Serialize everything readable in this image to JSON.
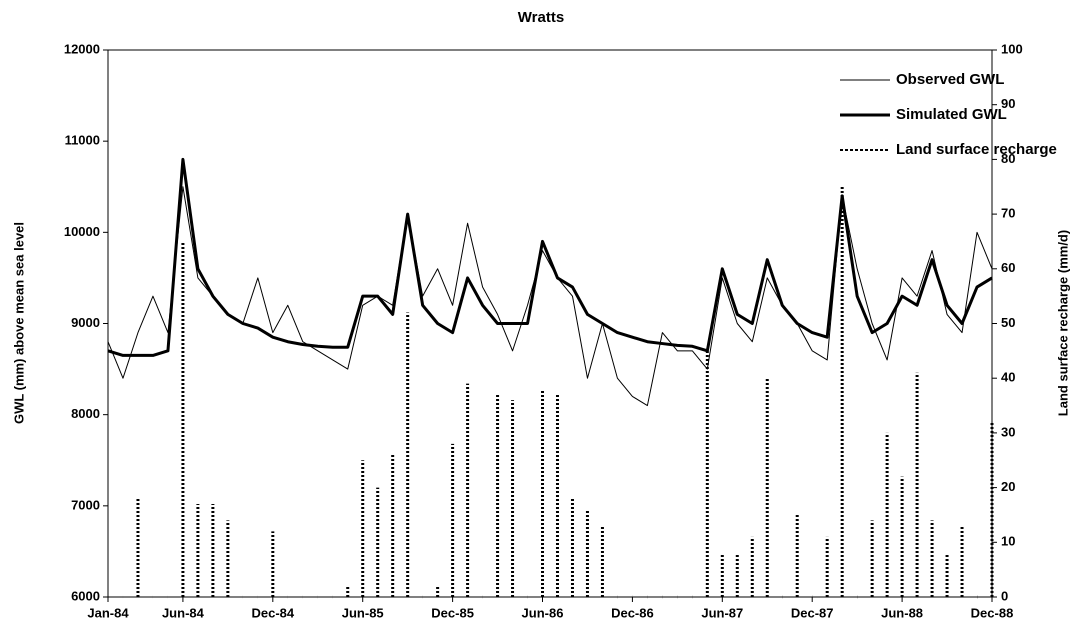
{
  "chart_data": {
    "type": "line",
    "title": "Wratts",
    "ylabel": "GWL (mm) above mean sea level",
    "y2label": "Land surface recharge (mm/d)",
    "categories": [
      "Jan-84",
      "Feb-84",
      "Mar-84",
      "Apr-84",
      "May-84",
      "Jun-84",
      "Jul-84",
      "Aug-84",
      "Sep-84",
      "Oct-84",
      "Nov-84",
      "Dec-84",
      "Jan-85",
      "Feb-85",
      "Mar-85",
      "Apr-85",
      "May-85",
      "Jun-85",
      "Jul-85",
      "Aug-85",
      "Sep-85",
      "Oct-85",
      "Nov-85",
      "Dec-85",
      "Jan-86",
      "Feb-86",
      "Mar-86",
      "Apr-86",
      "May-86",
      "Jun-86",
      "Jul-86",
      "Aug-86",
      "Sep-86",
      "Oct-86",
      "Nov-86",
      "Dec-86",
      "Jan-87",
      "Feb-87",
      "Mar-87",
      "Apr-87",
      "May-87",
      "Jun-87",
      "Jul-87",
      "Aug-87",
      "Sep-87",
      "Oct-87",
      "Nov-87",
      "Dec-87",
      "Jan-88",
      "Feb-88",
      "Mar-88",
      "Apr-88",
      "May-88",
      "Jun-88",
      "Jul-88",
      "Aug-88",
      "Sep-88",
      "Oct-88",
      "Nov-88",
      "Dec-88"
    ],
    "xticks": [
      "Jan-84",
      "Jun-84",
      "Dec-84",
      "Jun-85",
      "Dec-85",
      "Jun-86",
      "Dec-86",
      "Jun-87",
      "Dec-87",
      "Jun-88",
      "Dec-88"
    ],
    "ylim": [
      6000,
      12000
    ],
    "yticks": [
      6000,
      7000,
      8000,
      9000,
      10000,
      11000,
      12000
    ],
    "y2lim": [
      0,
      100
    ],
    "y2ticks": [
      0,
      10,
      20,
      30,
      40,
      50,
      60,
      70,
      80,
      90,
      100
    ],
    "legend": "upper right",
    "series": [
      {
        "name": "Observed GWL",
        "color": "#000000",
        "width": 1,
        "values": [
          8800,
          8400,
          8900,
          9300,
          8900,
          10500,
          9500,
          9300,
          9100,
          9000,
          9500,
          8900,
          9200,
          8800,
          8700,
          8600,
          8500,
          9200,
          9300,
          9200,
          10200,
          9300,
          9600,
          9200,
          10100,
          9400,
          9100,
          8700,
          9200,
          9800,
          9500,
          9300,
          8400,
          9000,
          8400,
          8200,
          8100,
          8900,
          8700,
          8700,
          8500,
          9500,
          9000,
          8800,
          9500,
          9200,
          9000,
          8700,
          8600,
          10400,
          9600,
          9000,
          8600,
          9500,
          9300,
          9800,
          9100,
          8900,
          10000,
          9600
        ]
      },
      {
        "name": "Simulated GWL",
        "color": "#000000",
        "width": 3,
        "values": [
          8700,
          8650,
          8650,
          8650,
          8700,
          10800,
          9600,
          9300,
          9100,
          9000,
          8950,
          8850,
          8800,
          8770,
          8750,
          8740,
          8740,
          9300,
          9300,
          9100,
          10200,
          9200,
          9000,
          8900,
          9500,
          9200,
          9000,
          9000,
          9000,
          9900,
          9500,
          9400,
          9100,
          9000,
          8900,
          8850,
          8800,
          8780,
          8760,
          8750,
          8700,
          9600,
          9100,
          9000,
          9700,
          9200,
          9000,
          8900,
          8850,
          10400,
          9300,
          8900,
          9000,
          9300,
          9200,
          9700,
          9200,
          9000,
          9400,
          9500
        ]
      },
      {
        "name": "Land surface recharge",
        "color": "#000000",
        "axis": "y2",
        "kind": "bar",
        "values": [
          0,
          0,
          18,
          0,
          0,
          65,
          17,
          17,
          14,
          0,
          0,
          12,
          0,
          0,
          0,
          0,
          2,
          25,
          20,
          26,
          52,
          0,
          2,
          28,
          39,
          0,
          37,
          36,
          0,
          38,
          37,
          18,
          16,
          13,
          0,
          0,
          0,
          0,
          0,
          0,
          45,
          8,
          8,
          11,
          40,
          0,
          15,
          0,
          11,
          75,
          0,
          14,
          30,
          22,
          41,
          14,
          8,
          13,
          0,
          32
        ]
      }
    ]
  }
}
